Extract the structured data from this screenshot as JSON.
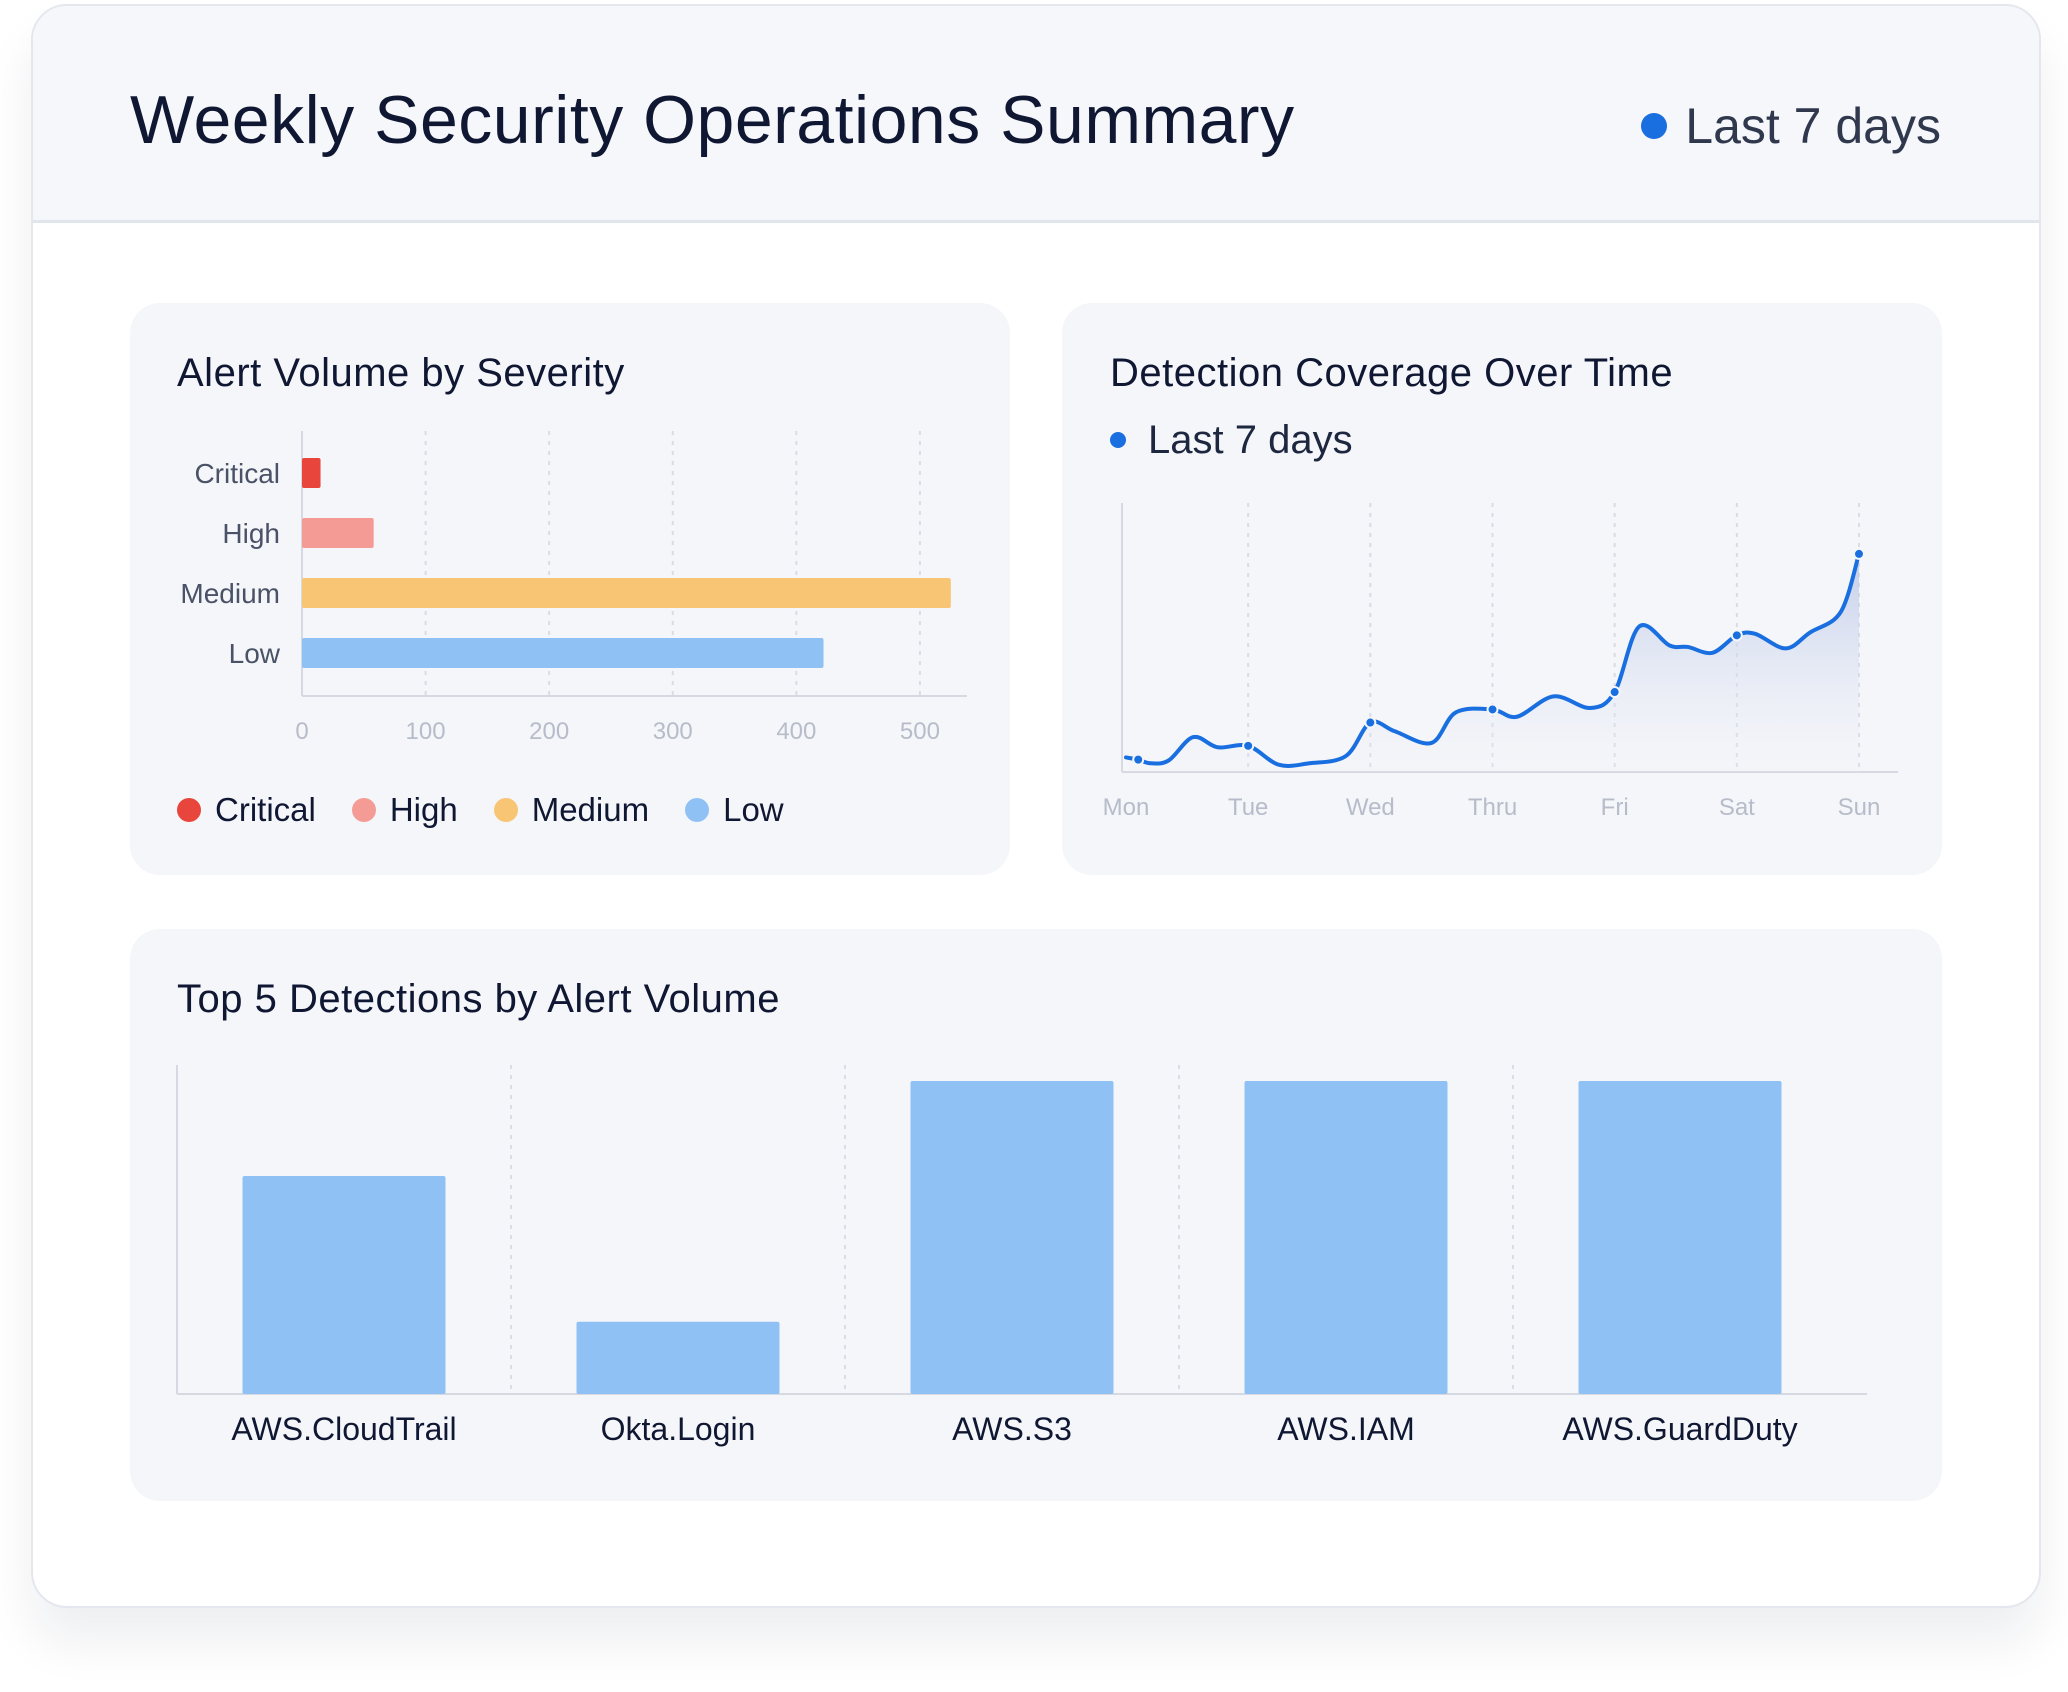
{
  "header": {
    "title": "Weekly Security Operations Summary",
    "range_label": "Last 7 days",
    "range_color": "#1a6fe0"
  },
  "severity_card": {
    "title": "Alert Volume by Severity",
    "legend": [
      {
        "label": "Critical",
        "color": "#e8453c"
      },
      {
        "label": "High",
        "color": "#f59b96"
      },
      {
        "label": "Medium",
        "color": "#f8c574"
      },
      {
        "label": "Low",
        "color": "#90c1f5"
      }
    ]
  },
  "coverage_card": {
    "title": "Detection Coverage Over Time",
    "legend_label": "Last 7 days",
    "line_color": "#1a6fe0"
  },
  "detections_card": {
    "title": "Top 5 Detections by Alert Volume"
  },
  "chart_data": [
    {
      "id": "severity",
      "type": "bar",
      "orientation": "horizontal",
      "title": "Alert Volume by Severity",
      "categories": [
        "Critical",
        "High",
        "Medium",
        "Low"
      ],
      "values": [
        15,
        58,
        525,
        422
      ],
      "colors": [
        "#e8453c",
        "#f59b96",
        "#f8c574",
        "#90c1f5"
      ],
      "xticks": [
        0,
        100,
        200,
        300,
        400,
        500
      ],
      "xlim": [
        0,
        530
      ],
      "grid": "vertical-dotted",
      "legend_position": "bottom-left"
    },
    {
      "id": "coverage",
      "type": "area",
      "title": "Detection Coverage Over Time",
      "categories": [
        "Mon",
        "Tue",
        "Wed",
        "Thru",
        "Fri",
        "Sat",
        "Sun"
      ],
      "series": [
        {
          "name": "Last 7 days",
          "points": [
            [
              0.0,
              10.0
            ],
            [
              0.1,
              8.5
            ],
            [
              0.2,
              6.0
            ],
            [
              0.35,
              8.0
            ],
            [
              0.55,
              24.0
            ],
            [
              0.75,
              17.0
            ],
            [
              1.0,
              18.0
            ],
            [
              1.25,
              5.0
            ],
            [
              1.5,
              6.0
            ],
            [
              1.8,
              11.0
            ],
            [
              2.0,
              34.0
            ],
            [
              2.2,
              28.0
            ],
            [
              2.5,
              20.0
            ],
            [
              2.7,
              41.0
            ],
            [
              3.0,
              43.0
            ],
            [
              3.2,
              38.0
            ],
            [
              3.5,
              52.0
            ],
            [
              3.8,
              44.0
            ],
            [
              4.0,
              55.0
            ],
            [
              4.2,
              100.0
            ],
            [
              4.45,
              87.0
            ],
            [
              4.6,
              86.0
            ],
            [
              4.8,
              82.0
            ],
            [
              5.0,
              94.0
            ],
            [
              5.15,
              95.0
            ],
            [
              5.4,
              85.0
            ],
            [
              5.6,
              96.0
            ],
            [
              5.85,
              110.0
            ],
            [
              6.0,
              150.0
            ]
          ],
          "markers": [
            [
              0.1,
              8.5
            ],
            [
              1.0,
              18.0
            ],
            [
              2.0,
              34.0
            ],
            [
              3.0,
              43.0
            ],
            [
              4.0,
              55.0
            ],
            [
              5.0,
              94.0
            ],
            [
              6.0,
              150.0
            ]
          ]
        }
      ],
      "ylim": [
        0,
        185
      ],
      "grid": "vertical-dotted",
      "legend_position": "top-left"
    },
    {
      "id": "detections",
      "type": "bar",
      "title": "Top 5 Detections by Alert Volume",
      "categories": [
        "AWS.CloudTrail",
        "Okta.Login",
        "AWS.S3",
        "AWS.IAM",
        "AWS.GuardDuty"
      ],
      "values": [
        163,
        54,
        234,
        234,
        234
      ],
      "ylim": [
        0,
        246
      ],
      "color": "#90c1f5",
      "grid": "vertical-dotted"
    }
  ]
}
